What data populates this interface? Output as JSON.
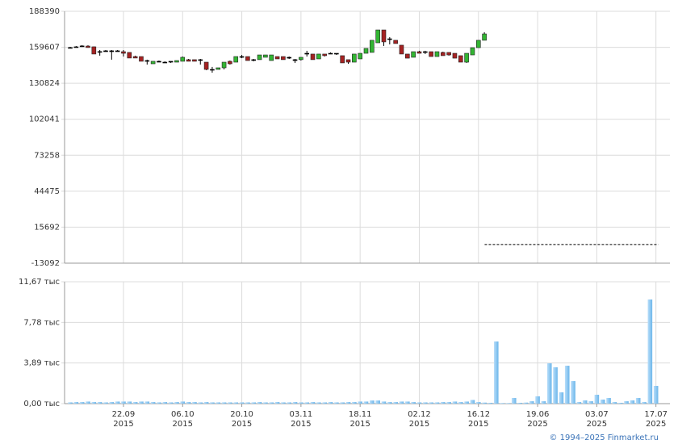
{
  "chart_data": [
    {
      "type": "candlestick",
      "open": [
        159300,
        159900,
        160600,
        160600,
        160000,
        156100,
        156800,
        156800,
        156800,
        156100,
        155500,
        152200,
        152200,
        149000,
        146400,
        148400,
        147700,
        147700,
        147700,
        148400,
        149700,
        149700,
        149700,
        147700,
        141900,
        141900,
        143200,
        148400,
        147700,
        152200,
        152200,
        149700,
        149700,
        151600,
        149000,
        152200,
        152200,
        151600,
        149700,
        149700,
        154800,
        154200,
        150300,
        154200,
        154800,
        154200,
        152900,
        149700,
        147700,
        150300,
        154800,
        155500,
        163200,
        173500,
        166400,
        165200,
        161300,
        154200,
        151600,
        156100,
        156100,
        156100,
        152200,
        155500,
        155500,
        154800,
        152900,
        147700,
        153500,
        159300,
        165200
      ],
      "high": [
        160000,
        160600,
        161300,
        161200,
        160300,
        157400,
        157400,
        157400,
        157400,
        157400,
        155500,
        152900,
        152200,
        149700,
        148400,
        149000,
        148400,
        148400,
        149000,
        152200,
        150300,
        149700,
        150300,
        147700,
        143900,
        143200,
        147700,
        149000,
        152200,
        153500,
        152200,
        150300,
        153500,
        153500,
        153500,
        152200,
        152200,
        152200,
        150300,
        151600,
        156800,
        154200,
        154200,
        154200,
        155500,
        154800,
        152900,
        149700,
        154200,
        154800,
        158700,
        165200,
        173500,
        173500,
        167700,
        165200,
        161300,
        154200,
        156100,
        156800,
        156800,
        156100,
        156100,
        156100,
        155500,
        154800,
        152900,
        154800,
        159300,
        165200,
        171600
      ],
      "low": [
        158700,
        159300,
        159900,
        159300,
        154200,
        152900,
        156100,
        149700,
        156100,
        152200,
        151000,
        151000,
        148400,
        145800,
        146400,
        147700,
        147100,
        147100,
        147700,
        148400,
        148400,
        148400,
        145800,
        141300,
        139300,
        141900,
        141900,
        145800,
        147700,
        150900,
        149000,
        148400,
        149700,
        151600,
        149000,
        150300,
        149700,
        150300,
        147100,
        149000,
        152200,
        149700,
        150300,
        152200,
        154200,
        153500,
        147100,
        146400,
        147700,
        150300,
        154800,
        155500,
        163200,
        160600,
        161900,
        162600,
        154200,
        150900,
        151600,
        154800,
        154200,
        152200,
        152200,
        152900,
        152900,
        150900,
        147700,
        147100,
        153500,
        159300,
        165200
      ],
      "close": [
        159400,
        160000,
        160700,
        159400,
        154200,
        156200,
        156100,
        156100,
        156100,
        154800,
        151000,
        151000,
        148400,
        149000,
        148400,
        147700,
        147700,
        148400,
        149000,
        151600,
        148400,
        148400,
        149700,
        141900,
        141900,
        143200,
        147700,
        146400,
        152200,
        152200,
        149000,
        149700,
        153500,
        153500,
        153500,
        150300,
        149700,
        150900,
        149000,
        151600,
        154200,
        149700,
        154200,
        152900,
        154200,
        154800,
        147100,
        147700,
        154200,
        154800,
        158700,
        165200,
        173500,
        163900,
        166400,
        162600,
        154200,
        150900,
        156100,
        154800,
        155500,
        152200,
        156100,
        152900,
        153500,
        150900,
        147700,
        154800,
        159300,
        165200,
        170300
      ],
      "up_color": "#33b533",
      "down_color": "#a52222",
      "doji_color": "#000000",
      "ylim": [
        -13092,
        188390
      ],
      "yticks": [
        -13092,
        15692,
        44475,
        73258,
        102041,
        130824,
        159607,
        188390
      ],
      "reference_line": {
        "value": 1870,
        "from": 71,
        "to": 99
      },
      "grid": true
    },
    {
      "type": "bar",
      "categories": [
        null,
        null,
        null,
        null,
        null,
        null,
        null,
        null,
        null,
        [
          "22.09",
          "2015"
        ],
        null,
        null,
        null,
        null,
        null,
        null,
        null,
        null,
        null,
        [
          "06.10",
          "2015"
        ],
        null,
        null,
        null,
        null,
        null,
        null,
        null,
        null,
        null,
        [
          "20.10",
          "2015"
        ],
        null,
        null,
        null,
        null,
        null,
        null,
        null,
        null,
        null,
        [
          "03.11",
          "2015"
        ],
        null,
        null,
        null,
        null,
        null,
        null,
        null,
        null,
        null,
        [
          "18.11",
          "2015"
        ],
        null,
        null,
        null,
        null,
        null,
        null,
        null,
        null,
        null,
        [
          "02.12",
          "2015"
        ],
        null,
        null,
        null,
        null,
        null,
        null,
        null,
        null,
        null,
        [
          "16.12",
          "2015"
        ],
        null,
        null,
        null,
        null,
        null,
        null,
        null,
        null,
        null,
        [
          "19.06",
          "2025"
        ],
        null,
        null,
        null,
        null,
        null,
        null,
        null,
        null,
        null,
        [
          "03.07",
          "2025"
        ],
        null,
        null,
        null,
        null,
        null,
        null,
        null,
        null,
        null,
        [
          "17.07",
          "2025"
        ]
      ],
      "values": [
        0.12,
        0.15,
        0.15,
        0.2,
        0.15,
        0.15,
        0.12,
        0.15,
        0.2,
        0.2,
        0.2,
        0.15,
        0.2,
        0.2,
        0.15,
        0.12,
        0.15,
        0.12,
        0.15,
        0.2,
        0.15,
        0.15,
        0.12,
        0.15,
        0.12,
        0.12,
        0.12,
        0.12,
        0.12,
        0.12,
        0.12,
        0.12,
        0.15,
        0.12,
        0.12,
        0.15,
        0.12,
        0.12,
        0.15,
        0.12,
        0.12,
        0.15,
        0.12,
        0.12,
        0.15,
        0.12,
        0.12,
        0.15,
        0.15,
        0.2,
        0.2,
        0.3,
        0.3,
        0.2,
        0.15,
        0.15,
        0.2,
        0.2,
        0.15,
        0.12,
        0.12,
        0.12,
        0.12,
        0.15,
        0.15,
        0.2,
        0.15,
        0.2,
        0.35,
        0.15,
        0.1,
        0.08,
        5.95,
        0.05,
        0.05,
        0.54,
        0.08,
        0.1,
        0.23,
        0.7,
        0.23,
        3.86,
        3.48,
        1.08,
        3.63,
        2.16,
        0.15,
        0.31,
        0.23,
        0.85,
        0.39,
        0.54,
        0.15,
        0.08,
        0.23,
        0.31,
        0.54,
        0.15,
        9.97,
        1.7
      ],
      "color": "#7fc0ee",
      "ylim": [
        0,
        11.67
      ],
      "yticks": [
        {
          "value": 0,
          "label": "0,00 тыс"
        },
        {
          "value": 3.89,
          "label": "3,89 тыс"
        },
        {
          "value": 7.78,
          "label": "7,78 тыс"
        },
        {
          "value": 11.67,
          "label": "11,67 тыс"
        }
      ],
      "grid": true
    }
  ],
  "footer": "© 1994–2025 Finmarket.ru"
}
